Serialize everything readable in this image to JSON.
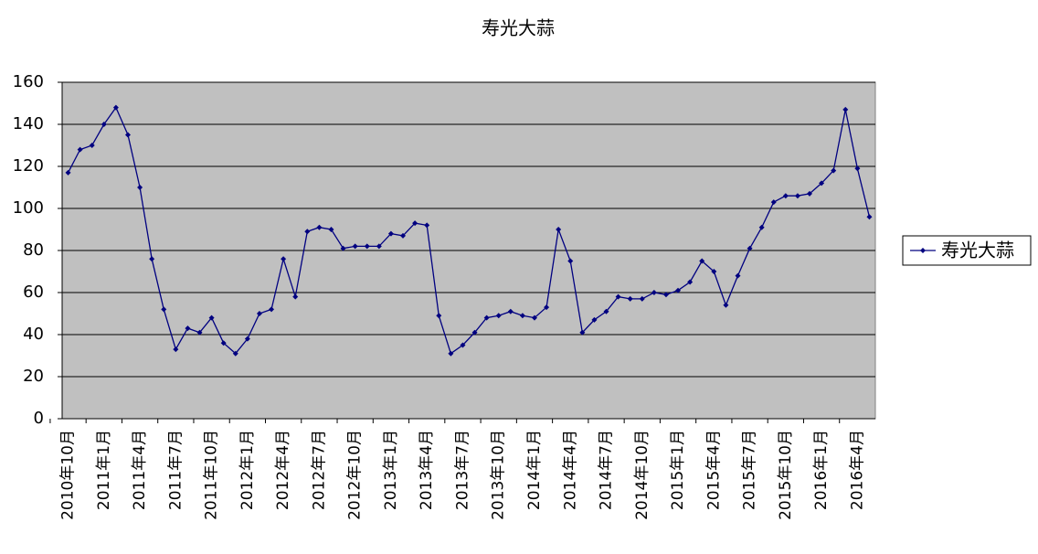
{
  "chart_data": {
    "type": "line",
    "title": "寿光大蒜",
    "categories": [
      "2010年10月",
      null,
      null,
      "2011年1月",
      null,
      null,
      "2011年4月",
      null,
      null,
      "2011年7月",
      null,
      null,
      "2011年10月",
      null,
      null,
      "2012年1月",
      null,
      null,
      "2012年4月",
      null,
      null,
      "2012年7月",
      null,
      null,
      "2012年10月",
      null,
      null,
      "2013年1月",
      null,
      null,
      "2013年4月",
      null,
      null,
      "2013年7月",
      null,
      null,
      "2013年10月",
      null,
      null,
      "2014年1月",
      null,
      null,
      "2014年4月",
      null,
      null,
      "2014年7月",
      null,
      null,
      "2014年10月",
      null,
      null,
      "2015年1月",
      null,
      null,
      "2015年4月",
      null,
      null,
      "2015年7月",
      null,
      null,
      "2015年10月",
      null,
      null,
      "2016年1月",
      null,
      null,
      "2016年4月",
      null
    ],
    "series": [
      {
        "name": "寿光大蒜",
        "color": "#000080",
        "values": [
          117,
          128,
          130,
          140,
          148,
          135,
          110,
          76,
          52,
          33,
          43,
          41,
          48,
          36,
          31,
          38,
          50,
          52,
          76,
          58,
          89,
          91,
          90,
          81,
          82,
          82,
          82,
          88,
          87,
          93,
          92,
          49,
          31,
          35,
          41,
          48,
          49,
          51,
          49,
          48,
          53,
          90,
          75,
          41,
          47,
          51,
          58,
          57,
          57,
          60,
          59,
          61,
          65,
          75,
          70,
          54,
          68,
          81,
          91,
          103,
          106,
          106,
          107,
          112,
          118,
          147,
          119,
          96
        ]
      }
    ],
    "ylim": [
      0,
      160
    ],
    "yticks": [
      0,
      20,
      40,
      60,
      80,
      100,
      120,
      140,
      160
    ],
    "grid": true,
    "legend": "right"
  }
}
